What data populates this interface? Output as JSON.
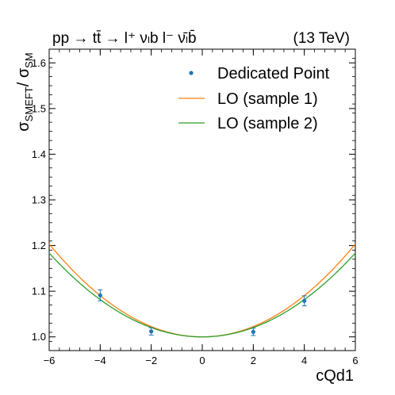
{
  "header": {
    "process": "pp → tt̄ → l⁺ νₗb  l⁻ ν̄ₗb̄",
    "energy": "(13 TeV)"
  },
  "chart_data": {
    "type": "line",
    "title": "",
    "xlabel": "cQd1",
    "ylabel_main": "σ",
    "ylabel_sub1": "SMEFT",
    "ylabel_sep": "/ σ",
    "ylabel_sub2": "SM",
    "xlim": [
      -6,
      6
    ],
    "ylim": [
      0.97,
      1.63
    ],
    "x_ticks": [
      -6,
      -4,
      -2,
      0,
      2,
      4,
      6
    ],
    "x_tick_labels": [
      "−6",
      "−4",
      "−2",
      "0",
      "2",
      "4",
      "6"
    ],
    "y_ticks": [
      1.0,
      1.1,
      1.2,
      1.3,
      1.4,
      1.5,
      1.6
    ],
    "y_tick_labels": [
      "1.0",
      "1.1",
      "1.2",
      "1.3",
      "1.4",
      "1.5",
      "1.6"
    ],
    "legend_position": "top-right",
    "series": [
      {
        "name": "LO (sample 1)",
        "color": "#ff7f0e",
        "curve": "quadratic",
        "coefficients": {
          "c0": 1.0,
          "c1": 0.0,
          "c2": 0.00565
        },
        "x": [
          -6,
          -4,
          -2,
          0,
          2,
          4,
          6
        ],
        "values": [
          1.2034,
          1.0904,
          1.0226,
          1.0,
          1.0226,
          1.0904,
          1.2034
        ]
      },
      {
        "name": "LO (sample 2)",
        "color": "#2ca02c",
        "curve": "quadratic",
        "coefficients": {
          "c0": 1.0,
          "c1": 0.0,
          "c2": 0.0051
        },
        "x": [
          -6,
          -4,
          -2,
          0,
          2,
          4,
          6
        ],
        "values": [
          1.1836,
          1.0816,
          1.0204,
          1.0,
          1.0204,
          1.0816,
          1.1836
        ]
      }
    ],
    "points": {
      "name": "Dedicated Point",
      "color": "#1f77b4",
      "x": [
        -4,
        -2,
        2,
        4
      ],
      "y": [
        1.091,
        1.012,
        1.011,
        1.079
      ],
      "yerr": [
        0.012,
        0.008,
        0.008,
        0.011
      ]
    }
  }
}
